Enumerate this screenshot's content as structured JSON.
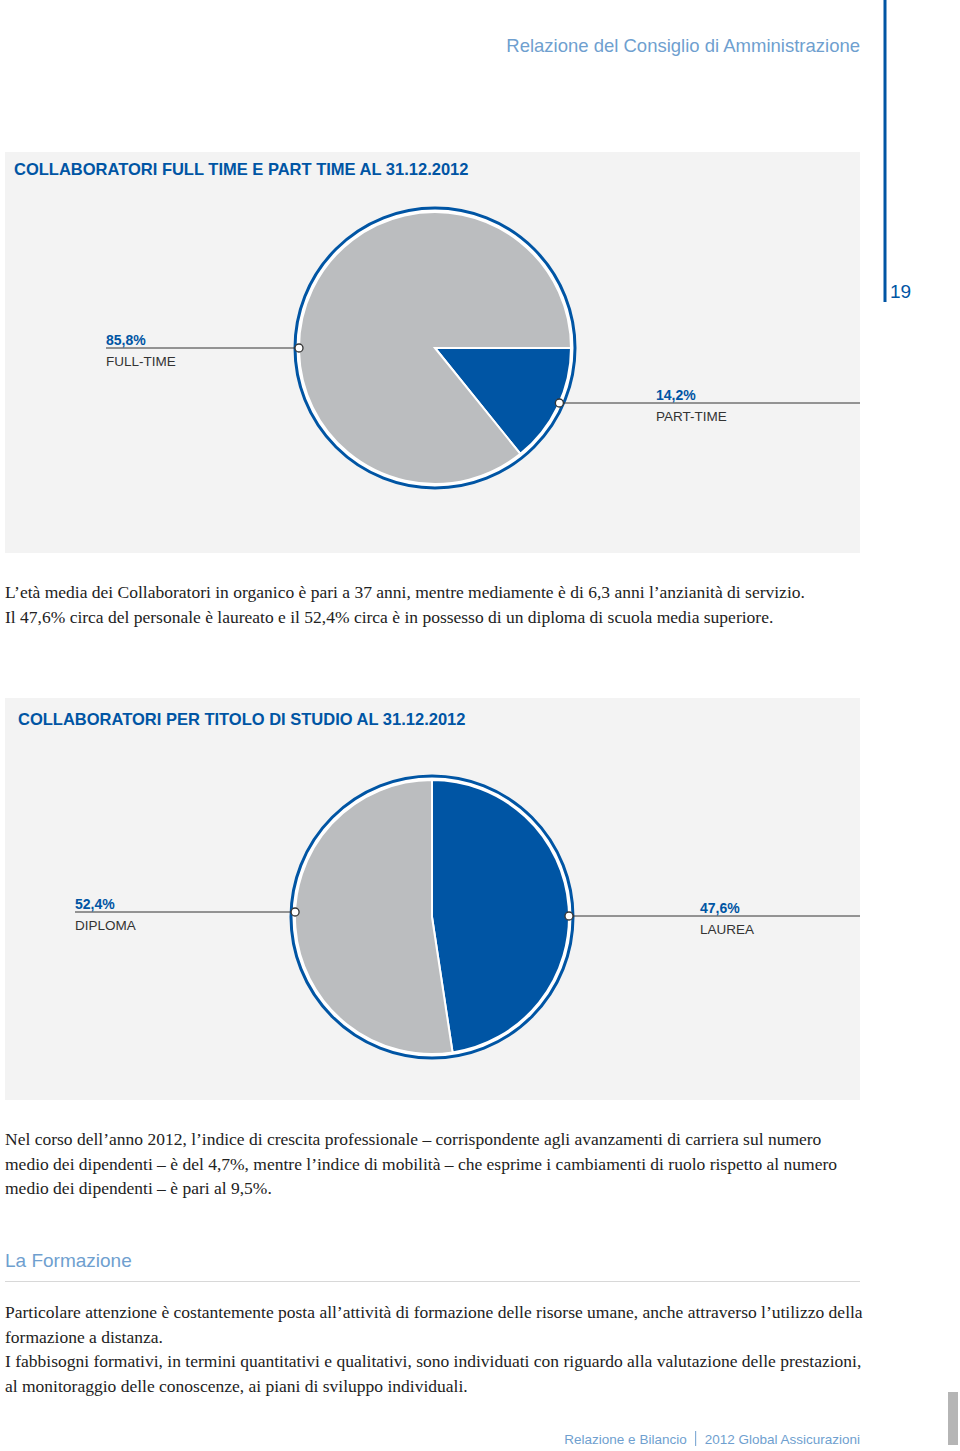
{
  "header": {
    "title": "Relazione del Consiglio di Amministrazione",
    "page_number": 19
  },
  "chart_data": [
    {
      "type": "pie",
      "title": "COLLABORATORI FULL TIME E PART TIME AL 31.12.2012",
      "categories": [
        "PART-TIME",
        "FULL-TIME"
      ],
      "values": [
        14.2,
        85.8
      ],
      "value_labels": [
        "14,2%",
        "85,8%"
      ],
      "colors": [
        "#0055a4",
        "#bbbdbf"
      ],
      "data_labels": true
    },
    {
      "type": "pie",
      "title": "COLLABORATORI PER TITOLO DI STUDIO AL 31.12.2012",
      "categories": [
        "LAUREA",
        "DIPLOMA"
      ],
      "values": [
        47.6,
        52.4
      ],
      "value_labels": [
        "47,6%",
        "52,4%"
      ],
      "colors": [
        "#0055a4",
        "#bbbdbf"
      ],
      "data_labels": true
    }
  ],
  "body": {
    "intro": [
      "L’età media dei Collaboratori in organico è pari a 37 anni, mentre mediamente è di 6,3 anni l’anzianità di servizio.",
      "Il 47,6% circa del personale è laureato e il 52,4% circa è in possesso di un diploma di scuola media superiore."
    ],
    "growth": "Nel corso dell’anno 2012, l’indice di crescita professionale – corrispondente agli avanzamenti di carriera sul numero medio dei dipendenti – è del 4,7%, mentre l’indice di mobilità – che esprime i cambiamenti di ruolo rispetto al numero medio dei dipendenti – è pari al 9,5%.",
    "section_title": "La Formazione",
    "section": [
      "Particolare attenzione è costantemente posta all’attività di formazione delle risorse umane, anche attraverso l’utilizzo della formazione a distanza.",
      "I fabbisogni formativi, in termini quantitativi e qualitativi, sono individuati con riguardo alla valutazione delle prestazioni, al monitoraggio delle conoscenze, ai piani di sviluppo individuali."
    ]
  },
  "footer": {
    "report": "Relazione e Bilancio",
    "company": "2012 Global Assicurazioni"
  }
}
